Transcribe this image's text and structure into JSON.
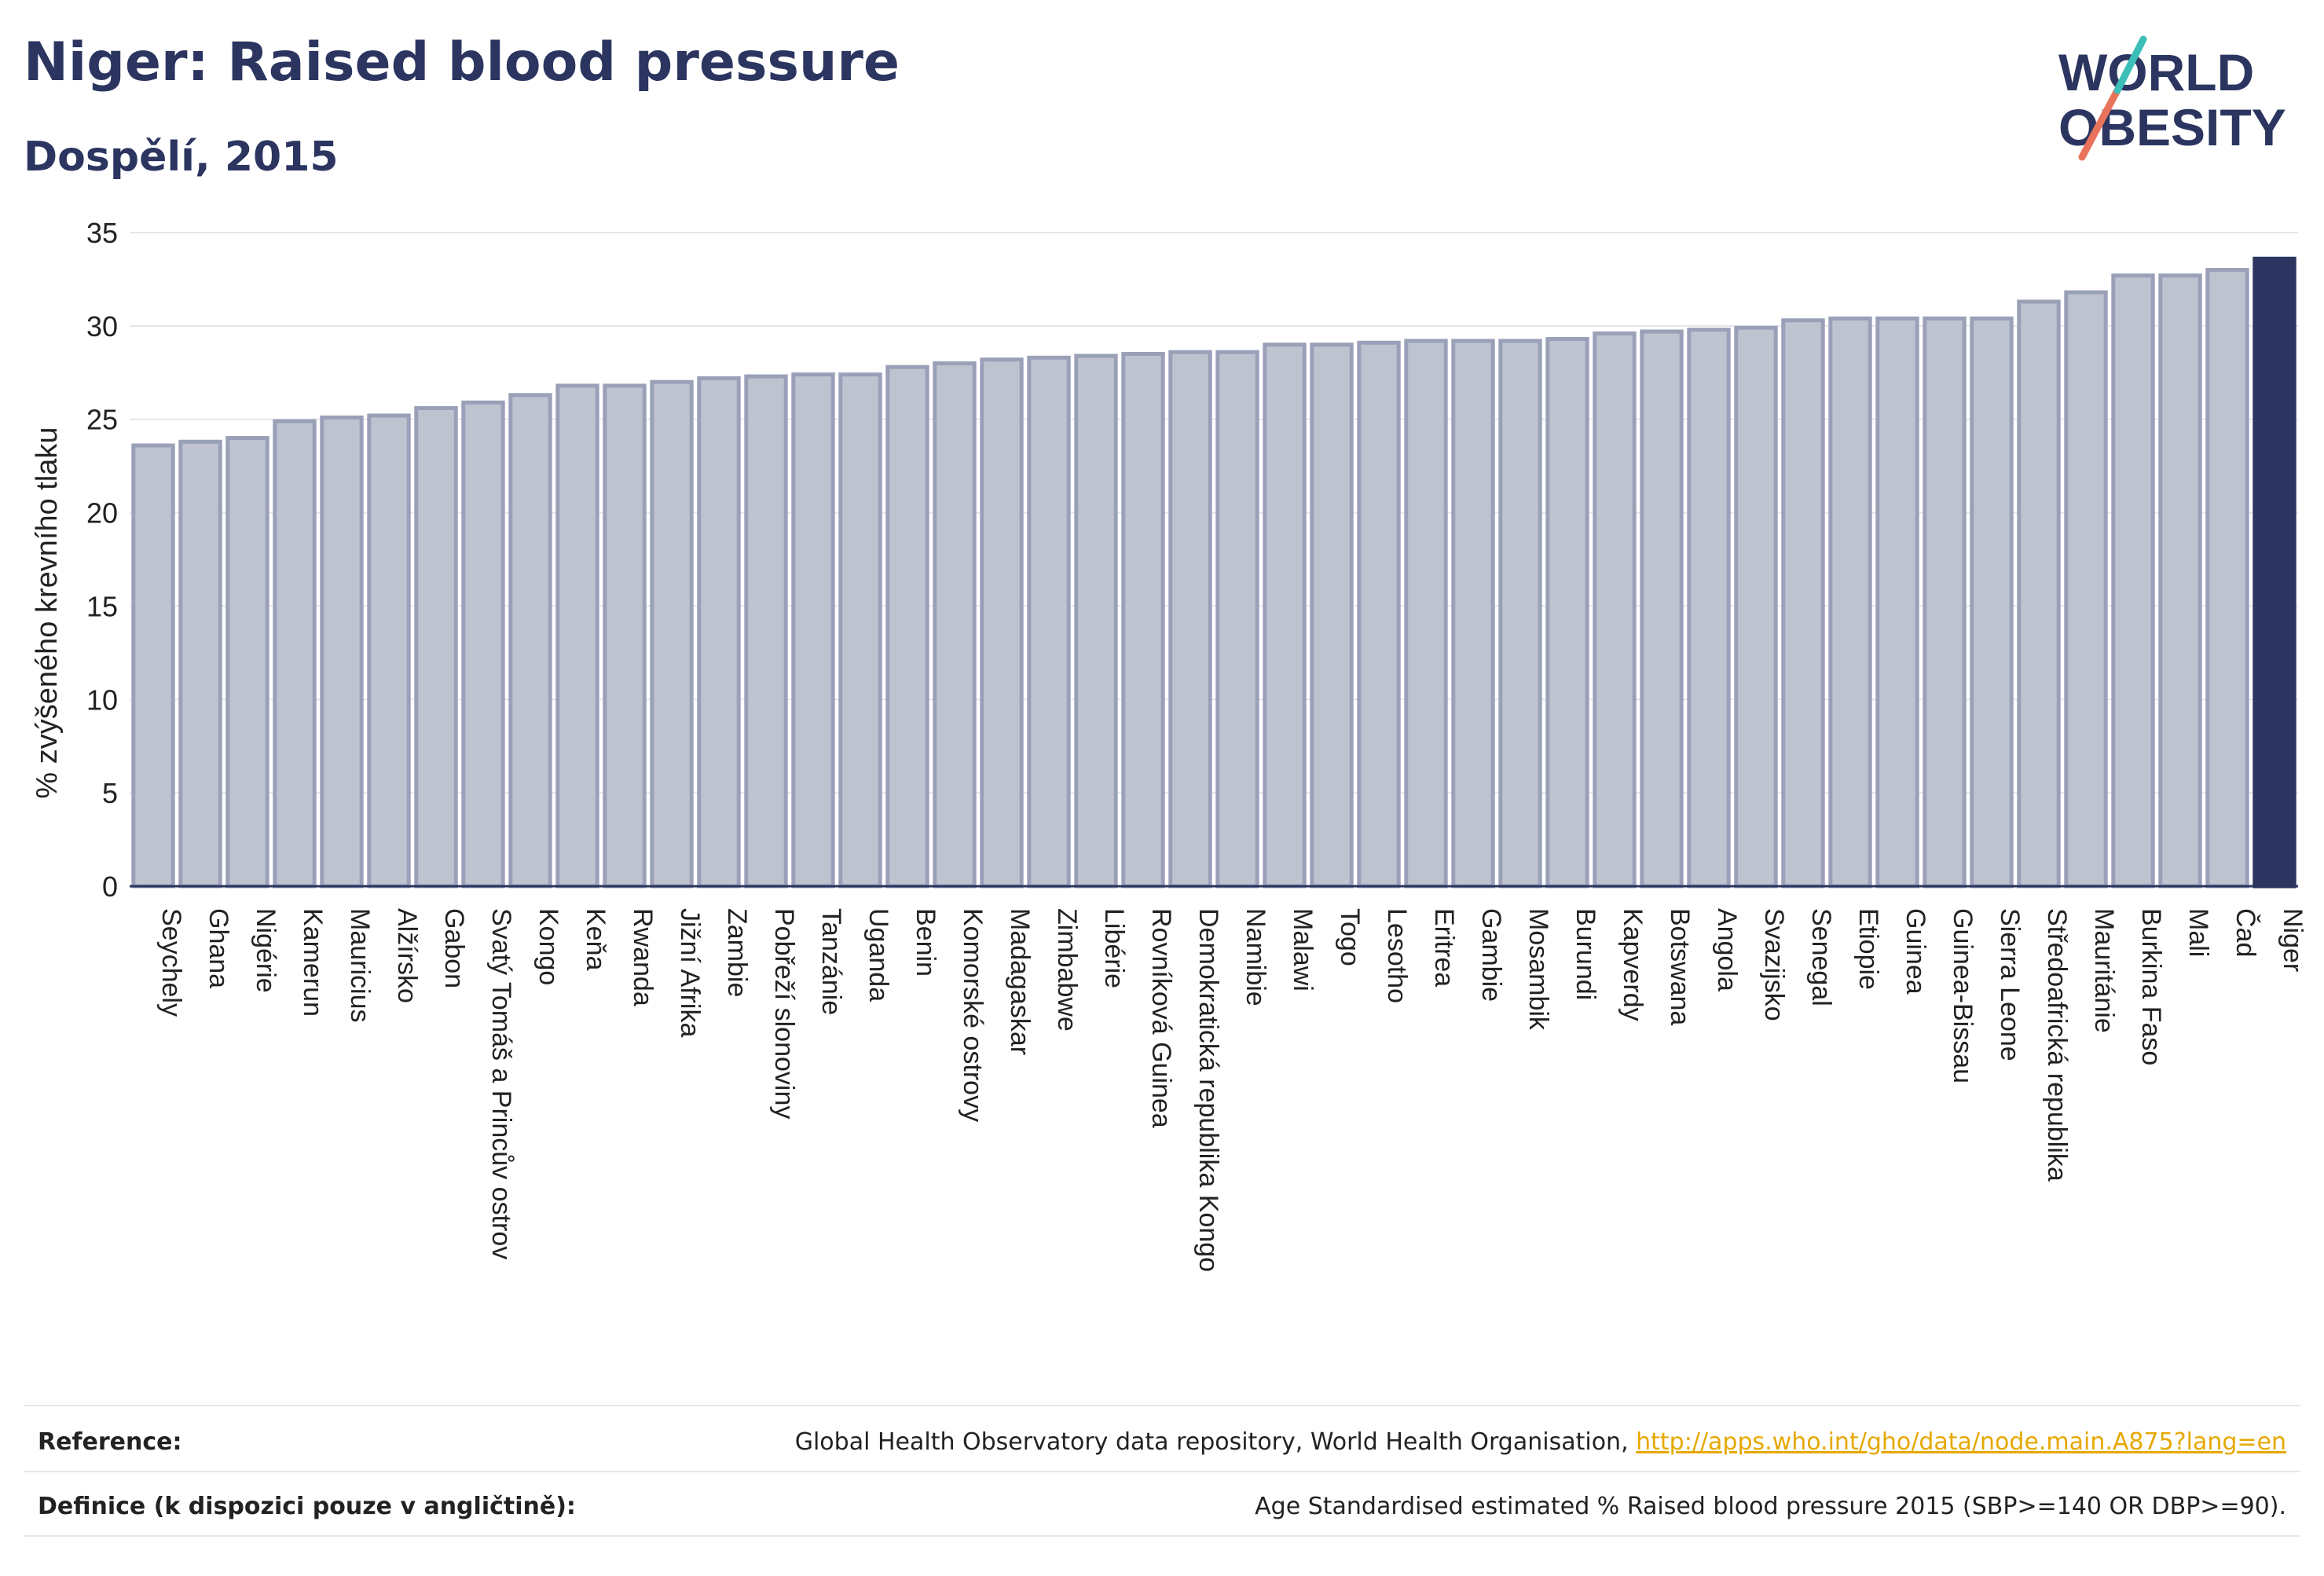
{
  "header": {
    "title": "Niger: Raised blood pressure",
    "subtitle": "Dospělí, 2015"
  },
  "logo": {
    "line1": "WORLD",
    "line2": "OBESITY"
  },
  "colors": {
    "primary": "#2b3560",
    "bar_fill": "#bfc3d0",
    "bar_stroke": "#9aa0b8",
    "highlight": "#2b3560",
    "link": "#e6a800",
    "logo_teal": "#3bbfb8",
    "logo_red": "#e8735a"
  },
  "chart_data": {
    "type": "bar",
    "ylabel": "% zvýšeného krevního tlaku",
    "ylim": [
      0,
      35
    ],
    "yticks": [
      0,
      5,
      10,
      15,
      20,
      25,
      30,
      35
    ],
    "grid": true,
    "highlight": "Niger",
    "categories": [
      "Seychely",
      "Ghana",
      "Nigérie",
      "Kamerun",
      "Mauricius",
      "Alžírsko",
      "Gabon",
      "Svatý Tomáš a Princův ostrov",
      "Kongo",
      "Keňa",
      "Rwanda",
      "Jižní Afrika",
      "Zambie",
      "Pobřeží slonoviny",
      "Tanzánie",
      "Uganda",
      "Benin",
      "Komorské ostrovy",
      "Madagaskar",
      "Zimbabwe",
      "Libérie",
      "Rovníková Guinea",
      "Demokratická republika Kongo",
      "Namibie",
      "Malawi",
      "Togo",
      "Lesotho",
      "Eritrea",
      "Gambie",
      "Mosambik",
      "Burundi",
      "Kapverdy",
      "Botswana",
      "Angola",
      "Svazijsko",
      "Senegal",
      "Etiopie",
      "Guinea",
      "Guinea-Bissau",
      "Sierra Leone",
      "Středoafrická republika",
      "Mauritánie",
      "Burkina Faso",
      "Mali",
      "Čad",
      "Niger"
    ],
    "values": [
      23.6,
      23.8,
      24.0,
      24.9,
      25.1,
      25.2,
      25.6,
      25.9,
      26.3,
      26.8,
      26.8,
      27.0,
      27.2,
      27.3,
      27.4,
      27.4,
      27.8,
      28.0,
      28.2,
      28.3,
      28.4,
      28.5,
      28.6,
      28.6,
      29.0,
      29.0,
      29.1,
      29.2,
      29.2,
      29.2,
      29.3,
      29.6,
      29.7,
      29.8,
      29.9,
      30.3,
      30.4,
      30.4,
      30.4,
      30.4,
      31.3,
      31.8,
      32.7,
      32.7,
      33.0,
      33.6
    ]
  },
  "footer": {
    "reference_label": "Reference:",
    "reference_text": "Global Health Observatory data repository, World Health Organisation, ",
    "reference_link": "http://apps.who.int/gho/data/node.main.A875?lang=en",
    "definition_label": "Definice (k dispozici pouze v angličtině):",
    "definition_text": "Age Standardised estimated % Raised blood pressure 2015 (SBP>=140 OR DBP>=90)."
  }
}
